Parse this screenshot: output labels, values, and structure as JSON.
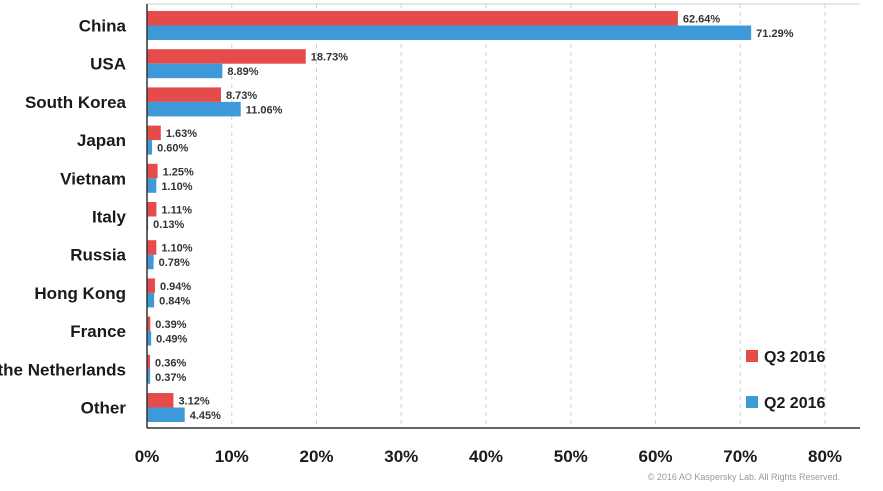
{
  "chart_data": {
    "type": "bar",
    "orientation": "horizontal",
    "categories": [
      "China",
      "USA",
      "South Korea",
      "Japan",
      "Vietnam",
      "Italy",
      "Russia",
      "Hong Kong",
      "France",
      "the Netherlands",
      "Other"
    ],
    "series": [
      {
        "name": "Q3 2016",
        "color": "#e54b4b",
        "values": [
          62.64,
          18.73,
          8.73,
          1.63,
          1.25,
          1.11,
          1.1,
          0.94,
          0.39,
          0.36,
          3.12
        ],
        "labels": [
          "62.64%",
          "18.73%",
          "8.73%",
          "1.63%",
          "1.25%",
          "1.11%",
          "1.10%",
          "0.94%",
          "0.39%",
          "0.36%",
          "3.12%"
        ]
      },
      {
        "name": "Q2 2016",
        "color": "#3e99d8",
        "values": [
          71.29,
          8.89,
          11.06,
          0.6,
          1.1,
          0.13,
          0.78,
          0.84,
          0.49,
          0.37,
          4.45
        ],
        "labels": [
          "71.29%",
          "8.89%",
          "11.06%",
          "0.60%",
          "1.10%",
          "0.13%",
          "0.78%",
          "0.84%",
          "0.49%",
          "0.37%",
          "4.45%"
        ]
      }
    ],
    "xlim": [
      0,
      80
    ],
    "xticks": [
      "0%",
      "10%",
      "20%",
      "30%",
      "40%",
      "50%",
      "60%",
      "70%",
      "80%"
    ],
    "grid": "vertical-dashed",
    "legend": "bottom-right"
  },
  "copyright": "© 2016 AO Kaspersky Lab. All Rights Reserved."
}
